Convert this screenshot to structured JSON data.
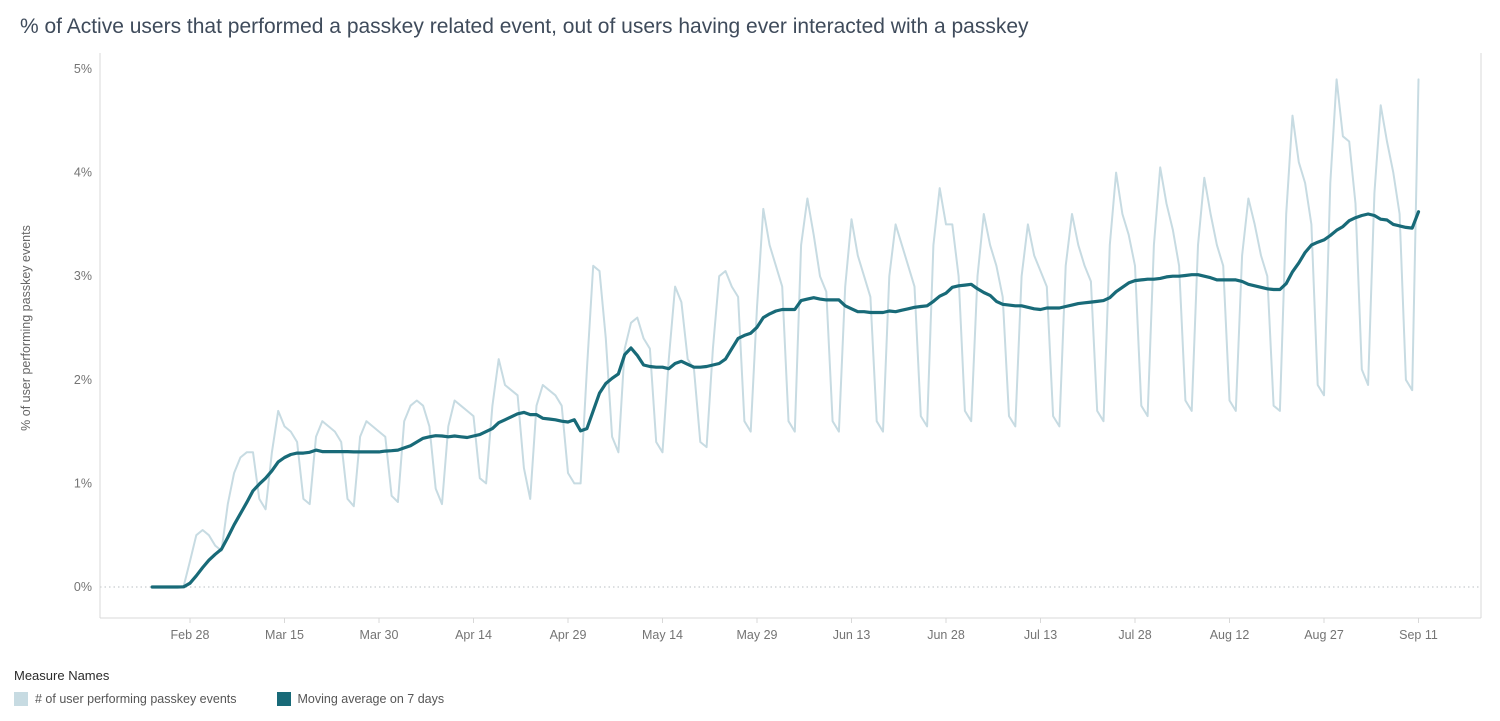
{
  "page": {
    "title": "% of Active users that performed a passkey related event, out of users having ever interacted with a passkey"
  },
  "legend": {
    "title": "Measure Names",
    "items": [
      {
        "label": "# of user performing passkey events",
        "color": "#c7dbe2"
      },
      {
        "label": "Moving average on 7 days",
        "color": "#186a78"
      }
    ]
  },
  "chart_data": {
    "type": "line",
    "title": "% of Active users that performed a passkey related event, out of users having ever interacted with a passkey",
    "xlabel": "",
    "ylabel": "% of user performing passkey events",
    "ylim": [
      0,
      5
    ],
    "y_ticks": [
      "0%",
      "1%",
      "2%",
      "3%",
      "4%",
      "5%"
    ],
    "x_unit": "day",
    "x_ticks": {
      "labels": [
        "Feb 28",
        "Mar 15",
        "Mar 30",
        "Apr 14",
        "Apr 29",
        "May 14",
        "May 29",
        "Jun 13",
        "Jun 28",
        "Jul 13",
        "Jul 28",
        "Aug 12",
        "Aug 27",
        "Sep 11"
      ],
      "day_indices": [
        6,
        21,
        36,
        51,
        66,
        81,
        96,
        111,
        126,
        141,
        156,
        171,
        186,
        201
      ]
    },
    "grid": "dotted horizontal line at 0% only",
    "legend_position": "bottom-left",
    "series": [
      {
        "name": "# of user performing passkey events",
        "color": "#c7dbe2",
        "unit": "%",
        "values": [
          0,
          0,
          0,
          0,
          0,
          0.01,
          0.25,
          0.5,
          0.55,
          0.5,
          0.4,
          0.35,
          0.8,
          1.1,
          1.25,
          1.3,
          1.3,
          0.85,
          0.75,
          1.3,
          1.7,
          1.55,
          1.5,
          1.4,
          0.85,
          0.8,
          1.45,
          1.6,
          1.55,
          1.5,
          1.4,
          0.85,
          0.78,
          1.45,
          1.6,
          1.55,
          1.5,
          1.45,
          0.88,
          0.82,
          1.6,
          1.75,
          1.8,
          1.75,
          1.55,
          0.95,
          0.8,
          1.55,
          1.8,
          1.75,
          1.7,
          1.65,
          1.05,
          1.0,
          1.75,
          2.2,
          1.95,
          1.9,
          1.85,
          1.15,
          0.85,
          1.75,
          1.95,
          1.9,
          1.85,
          1.75,
          1.1,
          1.0,
          1.0,
          2.1,
          3.1,
          3.05,
          2.4,
          1.45,
          1.3,
          2.3,
          2.55,
          2.6,
          2.4,
          2.3,
          1.4,
          1.3,
          2.2,
          2.9,
          2.75,
          2.2,
          2.1,
          1.4,
          1.35,
          2.3,
          3.0,
          3.05,
          2.9,
          2.8,
          1.6,
          1.5,
          2.7,
          3.65,
          3.3,
          3.1,
          2.9,
          1.6,
          1.5,
          3.3,
          3.75,
          3.4,
          3.0,
          2.85,
          1.6,
          1.5,
          2.9,
          3.55,
          3.2,
          3.0,
          2.8,
          1.6,
          1.5,
          3.0,
          3.5,
          3.3,
          3.1,
          2.9,
          1.65,
          1.55,
          3.3,
          3.85,
          3.5,
          3.5,
          3.0,
          1.7,
          1.6,
          3.0,
          3.6,
          3.3,
          3.1,
          2.8,
          1.65,
          1.55,
          3.0,
          3.5,
          3.2,
          3.05,
          2.9,
          1.65,
          1.55,
          3.1,
          3.6,
          3.3,
          3.1,
          2.95,
          1.7,
          1.6,
          3.3,
          4.0,
          3.6,
          3.4,
          3.1,
          1.75,
          1.65,
          3.3,
          4.05,
          3.7,
          3.45,
          3.1,
          1.8,
          1.7,
          3.3,
          3.95,
          3.6,
          3.3,
          3.1,
          1.8,
          1.7,
          3.2,
          3.75,
          3.5,
          3.2,
          3.0,
          1.75,
          1.7,
          3.6,
          4.55,
          4.1,
          3.9,
          3.5,
          1.95,
          1.85,
          3.9,
          4.9,
          4.35,
          4.3,
          3.7,
          2.1,
          1.95,
          3.8,
          4.65,
          4.3,
          4.0,
          3.6,
          2.0,
          1.9,
          4.9
        ]
      },
      {
        "name": "Moving average on 7 days",
        "color": "#186a78",
        "unit": "%",
        "derived": "trailing 7-day mean of the daily series"
      }
    ]
  }
}
